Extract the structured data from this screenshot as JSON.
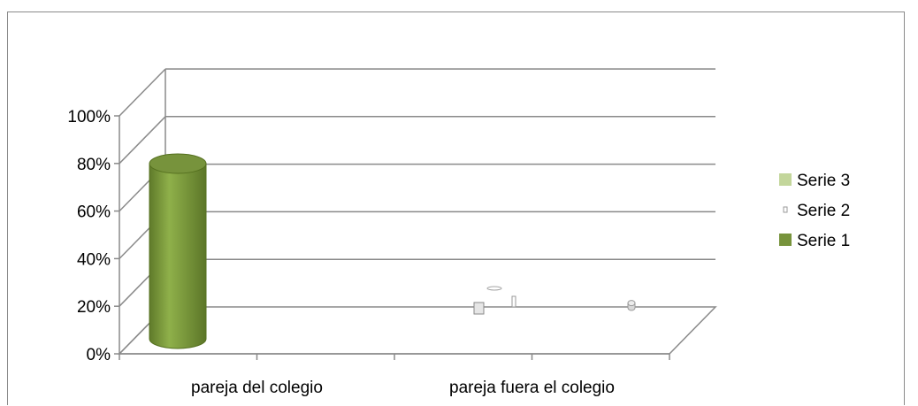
{
  "chart_data": {
    "type": "bar",
    "style": "3d-cylinder",
    "categories": [
      "pareja del colegio",
      "pareja fuera el colegio"
    ],
    "series": [
      {
        "name": "Serie 1",
        "values": [
          80,
          0
        ],
        "color": "#77933c"
      },
      {
        "name": "Serie 2",
        "values": [
          0,
          2
        ],
        "color": "#d9d9d9"
      },
      {
        "name": "Serie 3",
        "values": [
          0,
          0
        ],
        "color": "#c3d69b"
      }
    ],
    "y_ticks": [
      "0%",
      "20%",
      "40%",
      "60%",
      "80%",
      "100%"
    ],
    "ylim": [
      0,
      100
    ],
    "grid": true,
    "legend_position": "right"
  }
}
